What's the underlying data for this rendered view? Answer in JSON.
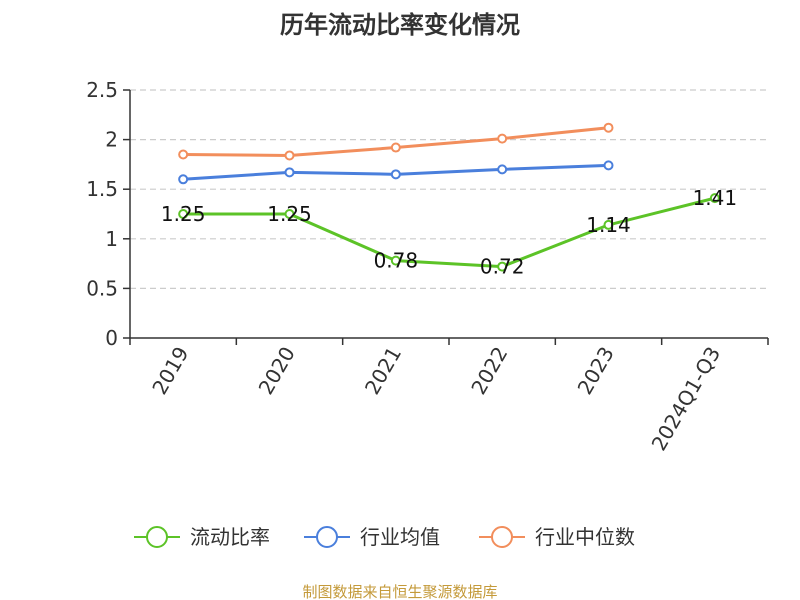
{
  "chart_data": {
    "type": "line",
    "title": "历年流动比率变化情况",
    "categories": [
      "2019",
      "2020",
      "2021",
      "2022",
      "2023",
      "2024Q1-Q3"
    ],
    "ylim": [
      0,
      2.5
    ],
    "yticks": [
      0,
      0.5,
      1,
      1.5,
      2,
      2.5
    ],
    "ytick_labels": [
      "0",
      "0.5",
      "1",
      "1.5",
      "2",
      "2.5"
    ],
    "grid": true,
    "legend_position": "bottom",
    "series": [
      {
        "name": "流动比率",
        "color": "#5cc327",
        "values": [
          1.25,
          1.25,
          0.78,
          0.72,
          1.14,
          1.41
        ],
        "labels": [
          "1.25",
          "1.25",
          "0.78",
          "0.72",
          "1.14",
          "1.41"
        ]
      },
      {
        "name": "行业均值",
        "color": "#4a7fdc",
        "values": [
          1.6,
          1.67,
          1.65,
          1.7,
          1.74,
          null
        ]
      },
      {
        "name": "行业中位数",
        "color": "#f28e5c",
        "values": [
          1.85,
          1.84,
          1.92,
          2.01,
          2.12,
          null
        ]
      }
    ]
  },
  "source_note": "制图数据来自恒生聚源数据库"
}
